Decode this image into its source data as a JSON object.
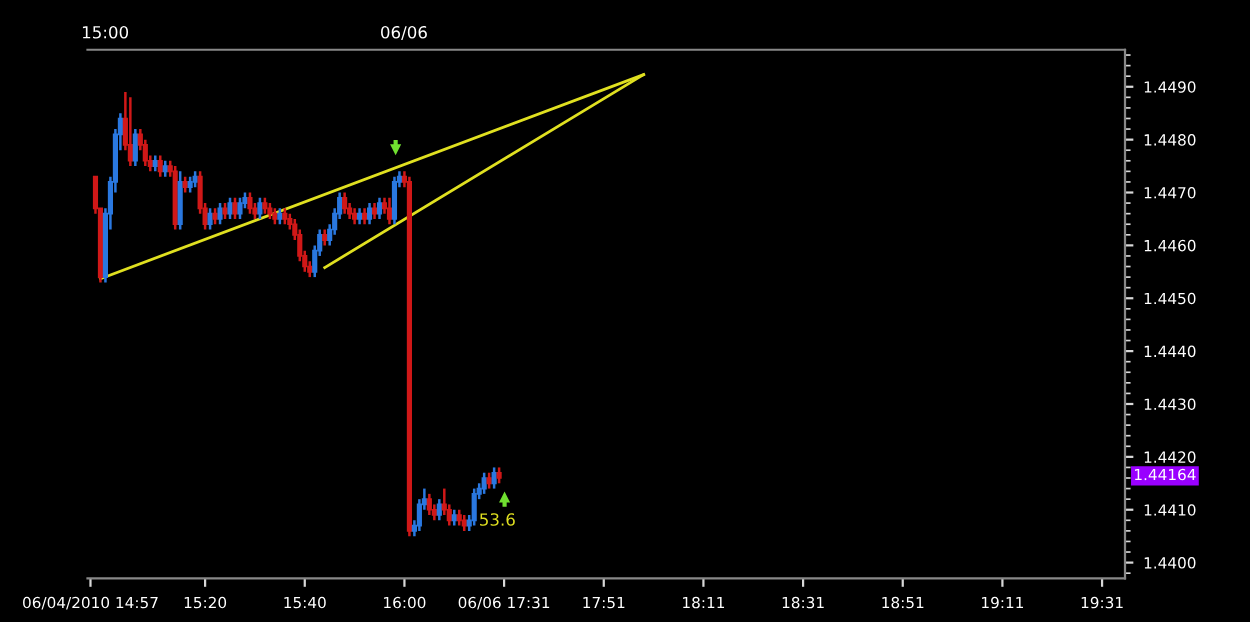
{
  "chart_data": {
    "type": "candlestick",
    "categories": [
      "06/04/2010 14:57",
      null,
      null,
      null,
      null,
      null,
      null,
      null,
      null,
      null,
      null,
      null,
      null,
      null,
      null,
      null,
      null,
      null,
      null,
      null,
      null,
      null,
      null,
      "15:20",
      null,
      null,
      null,
      null,
      null,
      null,
      null,
      null,
      null,
      null,
      null,
      null,
      null,
      null,
      null,
      null,
      null,
      null,
      null,
      "15:40",
      null,
      null,
      null,
      null,
      null,
      null,
      null,
      null,
      null,
      null,
      null,
      null,
      null,
      null,
      null,
      null,
      null,
      null,
      null,
      "16:00",
      null,
      null,
      null,
      null,
      null,
      null,
      null,
      null,
      null,
      null,
      null,
      null,
      null,
      null,
      null,
      null,
      null,
      null,
      null,
      "06/06 17:31",
      null,
      null,
      null,
      null,
      null,
      null,
      null,
      null,
      null,
      null,
      null,
      null,
      null,
      null,
      null,
      null,
      null,
      null,
      null,
      "17:51",
      null,
      null,
      null,
      null,
      null,
      null,
      null,
      null,
      null,
      null,
      null,
      null,
      null,
      null,
      null,
      null,
      null,
      null,
      null,
      "18:11",
      null,
      null,
      null,
      null,
      null,
      null,
      null,
      null,
      null,
      null,
      null,
      null,
      null,
      null,
      null,
      null,
      null,
      null,
      null,
      "18:31",
      null,
      null,
      null,
      null,
      null,
      null,
      null,
      null,
      null,
      null,
      null,
      null,
      null,
      null,
      null,
      null,
      null,
      null,
      null,
      "18:51",
      null,
      null,
      null,
      null,
      null,
      null,
      null,
      null,
      null,
      null,
      null,
      null,
      null,
      null,
      null,
      null,
      null,
      null,
      null,
      "19:11",
      null,
      null,
      null,
      null,
      null,
      null,
      null,
      null,
      null,
      null,
      null,
      null,
      null,
      null,
      null,
      null,
      null,
      null,
      null,
      "19:31",
      null,
      null,
      null,
      null
    ],
    "ohlc": [
      null,
      [
        1.4473,
        1.4473,
        1.4466,
        1.4467
      ],
      [
        1.4467,
        1.4467,
        1.4453,
        1.4454
      ],
      [
        1.4454,
        1.4467,
        1.4453,
        1.4466
      ],
      [
        1.4466,
        1.4473,
        1.4463,
        1.4472
      ],
      [
        1.4472,
        1.4482,
        1.447,
        1.4481
      ],
      [
        1.4481,
        1.4485,
        1.4478,
        1.4484
      ],
      [
        1.4484,
        1.4489,
        1.4478,
        1.4479
      ],
      [
        1.4479,
        1.4488,
        1.4475,
        1.4476
      ],
      [
        1.4476,
        1.4482,
        1.4475,
        1.4481
      ],
      [
        1.4481,
        1.4482,
        1.4478,
        1.4479
      ],
      [
        1.4479,
        1.448,
        1.4475,
        1.4476
      ],
      [
        1.4476,
        1.4477,
        1.4474,
        1.4475
      ],
      [
        1.4475,
        1.4477,
        1.4474,
        1.4476
      ],
      [
        1.4476,
        1.4477,
        1.4473,
        1.4474
      ],
      [
        1.4474,
        1.4476,
        1.4473,
        1.4475
      ],
      [
        1.4475,
        1.4476,
        1.4473,
        1.4474
      ],
      [
        1.4474,
        1.4475,
        1.4463,
        1.4464
      ],
      [
        1.4464,
        1.4474,
        1.4463,
        1.4472
      ],
      [
        1.4472,
        1.4473,
        1.447,
        1.4471
      ],
      [
        1.4471,
        1.4473,
        1.447,
        1.4472
      ],
      [
        1.4472,
        1.4474,
        1.4471,
        1.4473
      ],
      [
        1.4473,
        1.4474,
        1.4466,
        1.4467
      ],
      [
        1.4467,
        1.4468,
        1.4463,
        1.4464
      ],
      [
        1.4464,
        1.4467,
        1.4463,
        1.4466
      ],
      [
        1.4466,
        1.4467,
        1.4464,
        1.4465
      ],
      [
        1.4465,
        1.4468,
        1.4464,
        1.4467
      ],
      [
        1.4467,
        1.4468,
        1.4465,
        1.4466
      ],
      [
        1.4466,
        1.4469,
        1.4465,
        1.4468
      ],
      [
        1.4468,
        1.4469,
        1.4465,
        1.4466
      ],
      [
        1.4466,
        1.4469,
        1.4465,
        1.4468
      ],
      [
        1.4468,
        1.447,
        1.4467,
        1.4469
      ],
      [
        1.4469,
        1.447,
        1.4466,
        1.4467
      ],
      [
        1.4467,
        1.4468,
        1.4465,
        1.4466
      ],
      [
        1.4466,
        1.4469,
        1.4465,
        1.4468
      ],
      [
        1.4468,
        1.4469,
        1.4466,
        1.4467
      ],
      [
        1.4467,
        1.4468,
        1.4465,
        1.4466
      ],
      [
        1.4466,
        1.4467,
        1.4464,
        1.4465
      ],
      [
        1.4465,
        1.4467,
        1.4464,
        1.4466
      ],
      [
        1.4466,
        1.4467,
        1.4464,
        1.4465
      ],
      [
        1.4465,
        1.4466,
        1.4463,
        1.4464
      ],
      [
        1.4464,
        1.4465,
        1.4461,
        1.4462
      ],
      [
        1.4462,
        1.4463,
        1.4457,
        1.4458
      ],
      [
        1.4458,
        1.4459,
        1.4455,
        1.4456
      ],
      [
        1.4456,
        1.4457,
        1.4454,
        1.4455
      ],
      [
        1.4455,
        1.446,
        1.4454,
        1.4459
      ],
      [
        1.4459,
        1.4463,
        1.4458,
        1.4462
      ],
      [
        1.4462,
        1.4463,
        1.446,
        1.4461
      ],
      [
        1.4461,
        1.4464,
        1.446,
        1.4463
      ],
      [
        1.4463,
        1.4467,
        1.4462,
        1.4466
      ],
      [
        1.4466,
        1.447,
        1.4465,
        1.4469
      ],
      [
        1.4469,
        1.447,
        1.4466,
        1.4467
      ],
      [
        1.4467,
        1.4468,
        1.4465,
        1.4466
      ],
      [
        1.4466,
        1.4467,
        1.4464,
        1.4465
      ],
      [
        1.4465,
        1.4467,
        1.4464,
        1.4466
      ],
      [
        1.4466,
        1.4467,
        1.4464,
        1.4465
      ],
      [
        1.4465,
        1.4468,
        1.4464,
        1.4467
      ],
      [
        1.4467,
        1.4468,
        1.4465,
        1.4466
      ],
      [
        1.4466,
        1.4469,
        1.4465,
        1.4468
      ],
      [
        1.4468,
        1.4469,
        1.4466,
        1.4467
      ],
      [
        1.4467,
        1.4469,
        1.4464,
        1.4465
      ],
      [
        1.4465,
        1.4473,
        1.4464,
        1.4472
      ],
      [
        1.4472,
        1.4474,
        1.4471,
        1.4473
      ],
      [
        1.4473,
        1.4474,
        1.4471,
        1.4472
      ],
      [
        1.4472,
        1.4473,
        1.4405,
        1.4406
      ],
      [
        1.4406,
        1.4408,
        1.4405,
        1.4407
      ],
      [
        1.4407,
        1.4412,
        1.4406,
        1.4411
      ],
      [
        1.4411,
        1.4414,
        1.441,
        1.4412
      ],
      [
        1.4412,
        1.4413,
        1.4409,
        1.441
      ],
      [
        1.441,
        1.4411,
        1.4408,
        1.4409
      ],
      [
        1.4409,
        1.4412,
        1.4408,
        1.4411
      ],
      [
        1.4411,
        1.4414,
        1.4409,
        1.441
      ],
      [
        1.441,
        1.4411,
        1.4407,
        1.4408
      ],
      [
        1.4408,
        1.441,
        1.4407,
        1.4409
      ],
      [
        1.4409,
        1.441,
        1.4407,
        1.4408
      ],
      [
        1.4408,
        1.4409,
        1.4406,
        1.4407
      ],
      [
        1.4407,
        1.4409,
        1.4406,
        1.4408
      ],
      [
        1.4408,
        1.4414,
        1.4407,
        1.4413
      ],
      [
        1.4413,
        1.4415,
        1.4412,
        1.4414
      ],
      [
        1.4414,
        1.4417,
        1.4413,
        1.4416
      ],
      [
        1.4416,
        1.4417,
        1.4414,
        1.4415
      ],
      [
        1.4415,
        1.4418,
        1.4414,
        1.4417
      ],
      [
        1.4417,
        1.4418,
        1.4415,
        1.4416
      ],
      null,
      null,
      null,
      null,
      null,
      null,
      null,
      null,
      null,
      null,
      null,
      null,
      null,
      null,
      null,
      null,
      null,
      null,
      null,
      null,
      null,
      null,
      null,
      null,
      null,
      null,
      null,
      null,
      null,
      null,
      null,
      null,
      null,
      null,
      null,
      null,
      null,
      null,
      null,
      null,
      null,
      null,
      null,
      null,
      null,
      null,
      null,
      null,
      null,
      null,
      null,
      null,
      null,
      null,
      null,
      null,
      null,
      null,
      null,
      null,
      null,
      null,
      null,
      null,
      null,
      null,
      null,
      null,
      null,
      null,
      null,
      null,
      null,
      null,
      null,
      null,
      null,
      null,
      null,
      null,
      null,
      null,
      null,
      null,
      null,
      null,
      null,
      null,
      null,
      null,
      null,
      null,
      null,
      null,
      null,
      null,
      null,
      null,
      null,
      null,
      null,
      null,
      null,
      null,
      null,
      null,
      null,
      null,
      null,
      null,
      null,
      null,
      null,
      null,
      null,
      null,
      null,
      null,
      null,
      null,
      null,
      null,
      null,
      null,
      null
    ],
    "colors": [
      null,
      "#d01818",
      "#d01818",
      "#2a78e0",
      "#2a78e0",
      "#2a78e0",
      "#2a78e0",
      "#d01818",
      "#d01818",
      "#2a78e0",
      "#d01818",
      "#d01818",
      "#d01818",
      "#2a78e0",
      "#d01818",
      "#2a78e0",
      "#d01818",
      "#d01818",
      "#2a78e0",
      "#d01818",
      "#2a78e0",
      "#2a78e0",
      "#d01818",
      "#d01818",
      "#2a78e0",
      "#d01818",
      "#2a78e0",
      "#d01818",
      "#2a78e0",
      "#d01818",
      "#2a78e0",
      "#2a78e0",
      "#d01818",
      "#d01818",
      "#2a78e0",
      "#d01818",
      "#d01818",
      "#d01818",
      "#2a78e0",
      "#d01818",
      "#d01818",
      "#d01818",
      "#d01818",
      "#d01818",
      "#d01818",
      "#2a78e0",
      "#2a78e0",
      "#d01818",
      "#2a78e0",
      "#2a78e0",
      "#2a78e0",
      "#d01818",
      "#d01818",
      "#d01818",
      "#2a78e0",
      "#d01818",
      "#2a78e0",
      "#d01818",
      "#2a78e0",
      "#d01818",
      "#d01818",
      "#2a78e0",
      "#2a78e0",
      "#d01818",
      "#d01818",
      "#2a78e0",
      "#2a78e0",
      "#2a78e0",
      "#d01818",
      "#d01818",
      "#2a78e0",
      "#d01818",
      "#d01818",
      "#2a78e0",
      "#d01818",
      "#d01818",
      "#2a78e0",
      "#2a78e0",
      "#2a78e0",
      "#2a78e0",
      "#d01818",
      "#2a78e0",
      "#d01818",
      null,
      null,
      null,
      null,
      null,
      null,
      null,
      null,
      null,
      null,
      null,
      null,
      null,
      null,
      null,
      null,
      null,
      null,
      null,
      null,
      null,
      null,
      null,
      null,
      null,
      null,
      null,
      null,
      null,
      null,
      null,
      null,
      null,
      null,
      null,
      null,
      null,
      null,
      null,
      null,
      null,
      null,
      null,
      null,
      null,
      null,
      null,
      null,
      null,
      null,
      null,
      null,
      null,
      null,
      null,
      null,
      null,
      null,
      null,
      null,
      null,
      null,
      null,
      null,
      null,
      null,
      null,
      null,
      null,
      null,
      null,
      null,
      null,
      null,
      null,
      null,
      null,
      null,
      null,
      null,
      null,
      null,
      null,
      null,
      null,
      null,
      null,
      null,
      null,
      null,
      null,
      null,
      null,
      null,
      null,
      null,
      null,
      null,
      null,
      null,
      null,
      null,
      null,
      null,
      null,
      null,
      null,
      null,
      null,
      null,
      null,
      null,
      null,
      null,
      null,
      null,
      null,
      null,
      null,
      null,
      null,
      null,
      null,
      null,
      null
    ],
    "series": [
      {
        "type": "line",
        "color": "#e0e020",
        "values": [
          null,
          null,
          1.44537,
          null,
          null,
          null,
          null,
          null,
          null,
          null,
          null,
          null,
          null,
          null,
          null,
          null,
          null,
          null,
          null,
          null,
          null,
          null,
          null,
          null,
          null,
          null,
          null,
          null,
          null,
          null,
          null,
          null,
          null,
          null,
          null,
          null,
          null,
          null,
          null,
          null,
          null,
          null,
          null,
          null,
          null,
          null,
          null,
          null,
          null,
          null,
          null,
          null,
          null,
          null,
          null,
          null,
          null,
          null,
          null,
          null,
          null,
          null,
          null,
          null,
          null,
          null,
          null,
          null,
          null,
          null,
          null,
          null,
          null,
          null,
          null,
          null,
          null,
          null,
          null,
          null,
          null,
          null,
          null,
          null,
          null,
          null,
          null,
          null,
          null,
          null,
          null,
          null,
          null,
          null,
          null,
          null,
          null,
          null,
          null,
          null,
          null,
          null,
          null,
          null,
          null,
          null,
          null,
          null,
          null,
          null,
          null,
          1.44923,
          null,
          null,
          null,
          null,
          null,
          null,
          null,
          null,
          null,
          null,
          null,
          null,
          null,
          null,
          null,
          null,
          null,
          null,
          null,
          null,
          null,
          null,
          null,
          null,
          null,
          null,
          null,
          null,
          null,
          null,
          null,
          null,
          null,
          null,
          null,
          null,
          null,
          null,
          null,
          null,
          null,
          null,
          null,
          null,
          null,
          null,
          null,
          null,
          null,
          null,
          null,
          null,
          null,
          null,
          null,
          null,
          null,
          null,
          null,
          null,
          null,
          null,
          null,
          null,
          null,
          null,
          null,
          null,
          null,
          null,
          null,
          null,
          null,
          null,
          null,
          null,
          null,
          null,
          null,
          null,
          null,
          null,
          null,
          null,
          null,
          null,
          null,
          null,
          null,
          null,
          null,
          null,
          null,
          null,
          null,
          null
        ]
      },
      {
        "type": "line",
        "color": "#e0e020",
        "values": [
          null,
          null,
          null,
          null,
          null,
          null,
          null,
          null,
          null,
          null,
          null,
          null,
          null,
          null,
          null,
          null,
          null,
          null,
          null,
          null,
          null,
          null,
          null,
          null,
          null,
          null,
          null,
          null,
          null,
          null,
          null,
          null,
          null,
          null,
          null,
          null,
          null,
          null,
          null,
          null,
          null,
          null,
          null,
          null,
          null,
          null,
          null,
          1.44558,
          null,
          null,
          null,
          null,
          null,
          null,
          null,
          null,
          null,
          null,
          null,
          null,
          null,
          null,
          null,
          null,
          null,
          null,
          null,
          null,
          null,
          null,
          null,
          null,
          null,
          null,
          null,
          null,
          null,
          null,
          null,
          null,
          null,
          null,
          null,
          null,
          null,
          null,
          null,
          null,
          null,
          null,
          null,
          null,
          null,
          null,
          null,
          null,
          null,
          null,
          null,
          null,
          null,
          null,
          null,
          null,
          null,
          null,
          null,
          null,
          null,
          null,
          null,
          1.44923,
          null,
          null,
          null,
          null,
          null,
          null,
          null,
          null,
          null,
          null,
          null,
          null,
          null,
          null,
          null,
          null,
          null,
          null,
          null,
          null,
          null,
          null,
          null,
          null,
          null,
          null,
          null,
          null,
          null,
          null,
          null,
          null,
          null,
          null,
          null,
          null,
          null,
          null,
          null,
          null,
          null,
          null,
          null,
          null,
          null,
          null,
          null,
          null,
          null,
          null,
          null,
          null,
          null,
          null,
          null,
          null,
          null,
          null,
          null,
          null,
          null,
          null,
          null,
          null,
          null,
          null,
          null,
          null,
          null,
          null,
          null,
          null,
          null,
          null,
          null,
          null,
          null,
          null,
          null,
          null,
          null,
          null,
          null,
          null,
          null,
          null,
          null,
          null,
          null,
          null,
          null,
          null,
          null,
          null,
          null,
          null
        ]
      }
    ],
    "ylim": [
      1.4397,
      1.4497
    ],
    "yticks": [
      {
        "value": 1.44,
        "label": "1.4400"
      },
      {
        "value": 1.441,
        "label": "1.4410"
      },
      {
        "value": 1.442,
        "label": "1.4420"
      },
      {
        "value": 1.443,
        "label": "1.4430"
      },
      {
        "value": 1.444,
        "label": "1.4440"
      },
      {
        "value": 1.445,
        "label": "1.4450"
      },
      {
        "value": 1.446,
        "label": "1.4460"
      },
      {
        "value": 1.447,
        "label": "1.4470"
      },
      {
        "value": 1.448,
        "label": "1.4480"
      },
      {
        "value": 1.449,
        "label": "1.4490"
      }
    ],
    "annotations": [
      "15:00",
      "06/06",
      "53.6",
      "1.44164"
    ],
    "grid": false,
    "line_style": "solid"
  }
}
